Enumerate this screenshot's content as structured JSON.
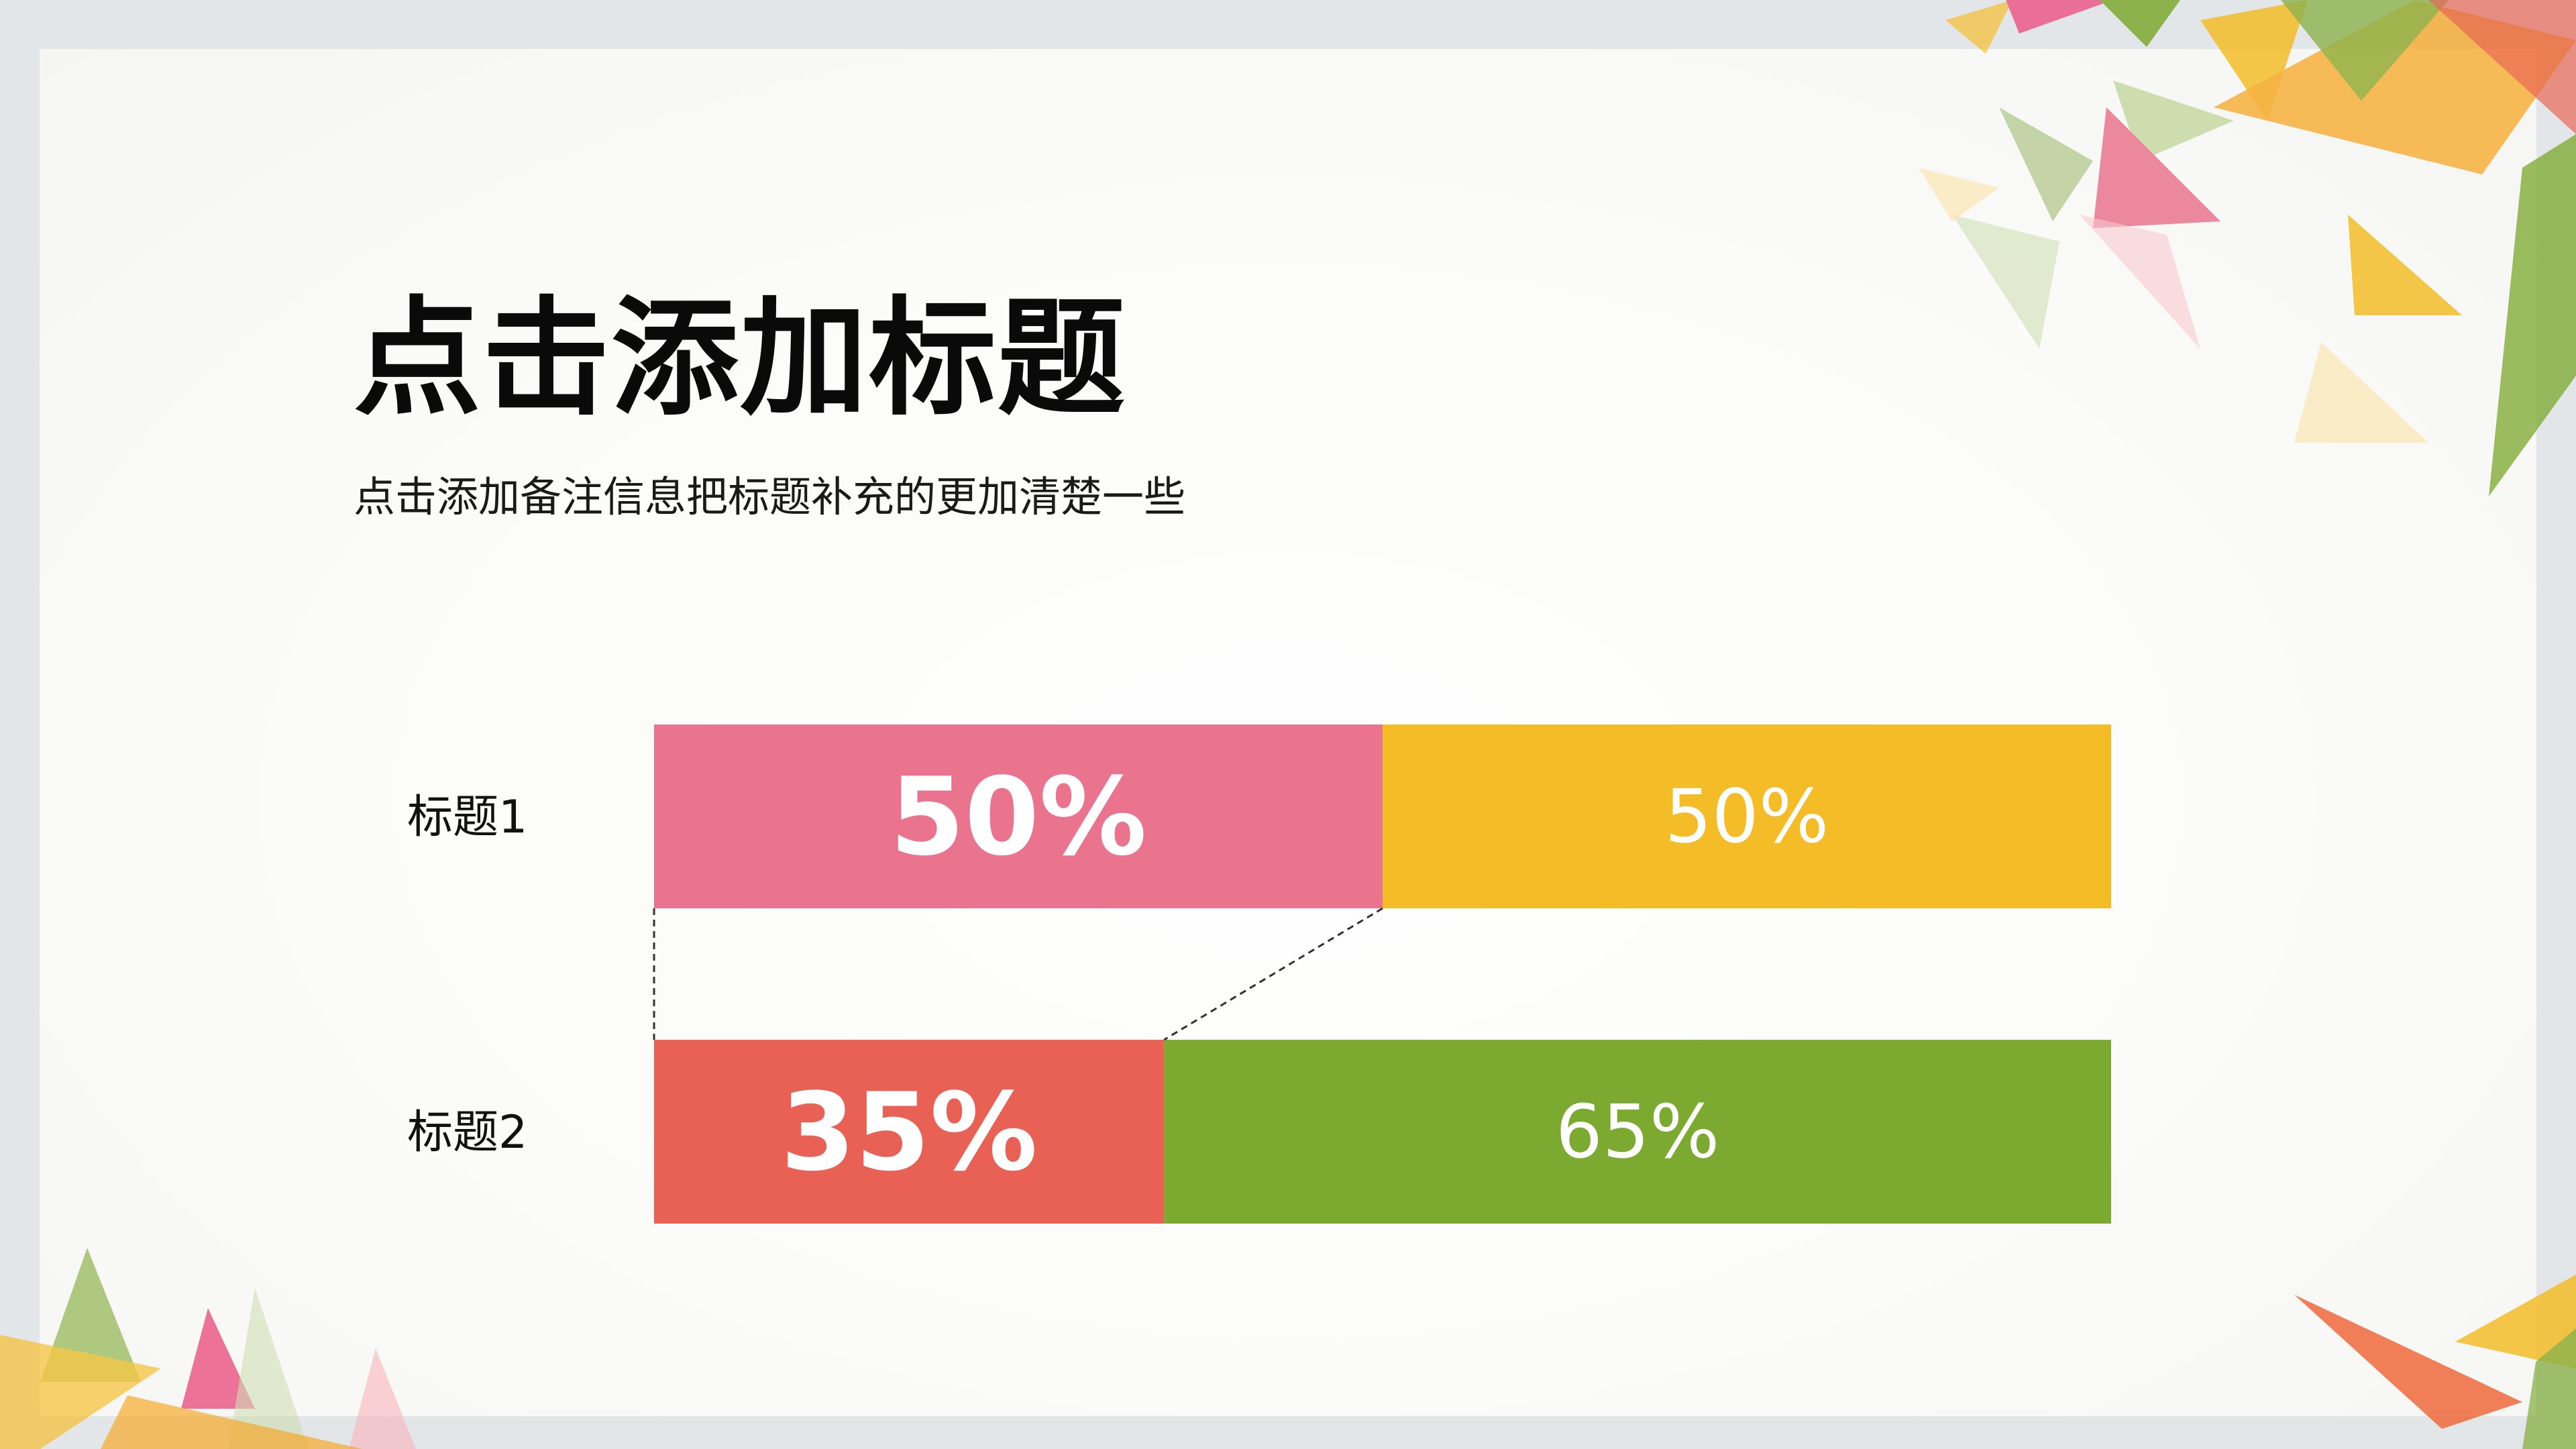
{
  "slide": {
    "title": "点击添加标题",
    "subtitle": "点击添加备注信息把标题补充的更加清楚一些"
  },
  "chart_data": {
    "type": "bar",
    "orientation": "horizontal",
    "stacked": true,
    "categories": [
      "标题1",
      "标题2"
    ],
    "series": [
      {
        "values": [
          50,
          35
        ],
        "labels": [
          "50%",
          "35%"
        ],
        "colors": [
          "#ea748e",
          "#e96055"
        ]
      },
      {
        "values": [
          50,
          65
        ],
        "labels": [
          "50%",
          "65%"
        ],
        "colors": [
          "#f4bd27",
          "#7ca92f"
        ]
      }
    ],
    "xlim": [
      0,
      100
    ],
    "grid": false,
    "legend": "none",
    "connector_lines": "dashed"
  }
}
